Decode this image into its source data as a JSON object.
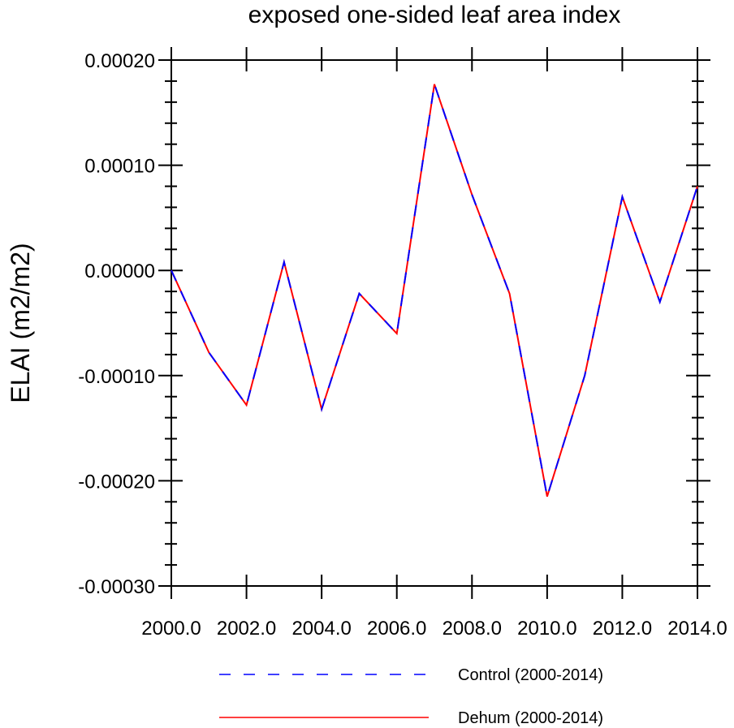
{
  "chart_data": {
    "type": "line",
    "title": "exposed one-sided leaf area index",
    "xlabel": "",
    "ylabel": "ELAI  (m2/m2)",
    "xlim": [
      2000,
      2014
    ],
    "ylim": [
      -0.0003,
      0.0002
    ],
    "x_ticks": [
      2000,
      2002,
      2004,
      2006,
      2008,
      2010,
      2012,
      2014
    ],
    "x_tick_labels": [
      "2000.0",
      "2002.0",
      "2004.0",
      "2006.0",
      "2008.0",
      "2010.0",
      "2012.0",
      "2014.0"
    ],
    "y_ticks": [
      0.0002,
      0.0001,
      0.0,
      -0.0001,
      -0.0002,
      -0.0003
    ],
    "y_tick_labels": [
      "0.00020",
      "0.00010",
      "0.00000",
      "-0.00010",
      "-0.00020",
      "-0.00030"
    ],
    "x": [
      2000,
      2001,
      2002,
      2003,
      2004,
      2005,
      2006,
      2007,
      2008,
      2009,
      2010,
      2011,
      2012,
      2013,
      2014
    ],
    "series": [
      {
        "name": "Control (2000-2014)",
        "color": "#0000ff",
        "style": "dashed",
        "values": [
          0.0,
          -7.8e-05,
          -0.000128,
          8e-06,
          -0.000132,
          -2.2e-05,
          -6e-05,
          0.000177,
          7.2e-05,
          -2.2e-05,
          -0.000215,
          -0.0001,
          7e-05,
          -3e-05,
          8e-05
        ]
      },
      {
        "name": "Dehum (2000-2014)",
        "color": "#ff0000",
        "style": "solid",
        "values": [
          0.0,
          -7.8e-05,
          -0.000128,
          8e-06,
          -0.000132,
          -2.2e-05,
          -6e-05,
          0.000177,
          7.2e-05,
          -2.2e-05,
          -0.000215,
          -0.0001,
          7e-05,
          -3e-05,
          8e-05
        ]
      }
    ],
    "legend_position": "bottom"
  }
}
